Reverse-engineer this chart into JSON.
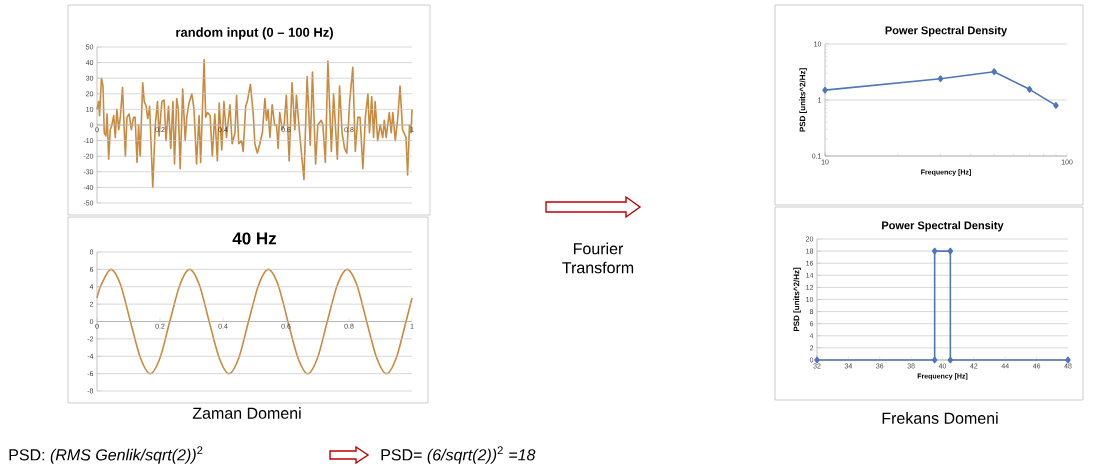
{
  "chart_data": [
    {
      "type": "line",
      "title": "random input (0 – 100 Hz)",
      "color": "#c98a3e",
      "xlim": [
        0,
        1
      ],
      "ylim": [
        -50,
        50
      ],
      "xticks": [
        0,
        0.2,
        0.4,
        0.6,
        0.8,
        1
      ],
      "yticks": [
        -50,
        -40,
        -30,
        -20,
        -10,
        0,
        10,
        20,
        30,
        40,
        50
      ],
      "grid": "y",
      "x": [
        0,
        0.005,
        0.008,
        0.014,
        0.019,
        0.023,
        0.028,
        0.032,
        0.037,
        0.042,
        0.047,
        0.053,
        0.058,
        0.063,
        0.069,
        0.074,
        0.081,
        0.09,
        0.095,
        0.102,
        0.109,
        0.116,
        0.121,
        0.127,
        0.132,
        0.137,
        0.145,
        0.15,
        0.156,
        0.161,
        0.167,
        0.177,
        0.185,
        0.192,
        0.197,
        0.206,
        0.213,
        0.219,
        0.227,
        0.234,
        0.241,
        0.246,
        0.253,
        0.258,
        0.264,
        0.272,
        0.28,
        0.285,
        0.292,
        0.301,
        0.308,
        0.316,
        0.324,
        0.329,
        0.34,
        0.345,
        0.351,
        0.359,
        0.366,
        0.374,
        0.382,
        0.388,
        0.396,
        0.403,
        0.411,
        0.422,
        0.429,
        0.438,
        0.443,
        0.45,
        0.459,
        0.464,
        0.472,
        0.477,
        0.487,
        0.496,
        0.501,
        0.509,
        0.517,
        0.525,
        0.533,
        0.538,
        0.543,
        0.549,
        0.556,
        0.564,
        0.57,
        0.575,
        0.58,
        0.588,
        0.594,
        0.601,
        0.61,
        0.619,
        0.628,
        0.633,
        0.643,
        0.657,
        0.667,
        0.677,
        0.684,
        0.694,
        0.701,
        0.712,
        0.717,
        0.725,
        0.733,
        0.744,
        0.751,
        0.763,
        0.77,
        0.778,
        0.786,
        0.793,
        0.802,
        0.812,
        0.82,
        0.828,
        0.835,
        0.844,
        0.852,
        0.86,
        0.865,
        0.872,
        0.878,
        0.883,
        0.891,
        0.899,
        0.907,
        0.912,
        0.918,
        0.928,
        0.934,
        0.939,
        0.947,
        0.955,
        0.962,
        0.97,
        0.981,
        0.986,
        0.992,
        0.997,
        1.0
      ],
      "values": [
        10,
        15,
        6,
        30,
        25,
        -5,
        -7,
        7,
        -22,
        -3,
        0,
        6,
        -8,
        10,
        -3,
        5,
        24,
        -20,
        5,
        7,
        -3,
        5,
        5,
        -24,
        0,
        -20,
        27,
        15,
        12,
        4,
        12,
        -40,
        0,
        15,
        -7,
        15,
        16,
        -10,
        12,
        -15,
        15,
        -25,
        17,
        10,
        -28,
        23,
        -10,
        5,
        14,
        20,
        10,
        -25,
        6,
        -24,
        42,
        5,
        8,
        6,
        -20,
        7,
        -23,
        14,
        -16,
        15,
        -8,
        13,
        -12,
        -5,
        19,
        -12,
        -10,
        -17,
        12,
        15,
        26,
        7,
        -12,
        -18,
        -12,
        -5,
        17,
        3,
        10,
        -8,
        13,
        0,
        0,
        -15,
        8,
        -3,
        0,
        19,
        -23,
        27,
        -3,
        19,
        -5,
        -35,
        31,
        -13,
        34,
        -25,
        0,
        3,
        0,
        -24,
        41,
        -17,
        20,
        -22,
        25,
        -5,
        -15,
        -18,
        15,
        37,
        -17,
        5,
        5,
        -28,
        5,
        20,
        -5,
        18,
        -8,
        15,
        -10,
        0,
        -8,
        3,
        -8,
        8,
        -5,
        8,
        -10,
        5,
        25,
        -3,
        -8,
        -32,
        0,
        -5,
        10
      ]
    },
    {
      "type": "line",
      "title": "40 Hz",
      "color": "#c98a3e",
      "xlim": [
        0,
        1
      ],
      "ylim": [
        -8,
        8
      ],
      "xticks": [
        0,
        0.2,
        0.4,
        0.6,
        0.8,
        1
      ],
      "yticks": [
        -8,
        -6,
        -4,
        -2,
        0,
        2,
        4,
        6,
        8
      ],
      "grid": "y",
      "x": [
        0,
        0.013,
        0.044,
        0.075,
        0.106,
        0.138,
        0.169,
        0.2,
        0.231,
        0.263,
        0.294,
        0.325,
        0.356,
        0.388,
        0.419,
        0.45,
        0.481,
        0.513,
        0.544,
        0.575,
        0.606,
        0.638,
        0.669,
        0.7,
        0.731,
        0.763,
        0.794,
        0.825,
        0.856,
        0.888,
        0.919,
        0.95,
        0.981,
        1.0
      ],
      "values": [
        2.7,
        4.2,
        6,
        4.2,
        0,
        -4.2,
        -6,
        -4.2,
        0,
        4.2,
        6,
        4.2,
        0,
        -4.2,
        -6,
        -4.2,
        0,
        4.2,
        6,
        4.2,
        0,
        -4.2,
        -6,
        -4.2,
        0,
        4.2,
        6,
        4.2,
        0,
        -4.2,
        -6,
        -4.2,
        0,
        2.7
      ],
      "annotations": [
        "Zaman Domeni",
        "PSD: *(RMS Genlik/sqrt(2))*$^{2}$",
        "PSD= *(6/sqrt(2))*$^{2}$ *=18*"
      ]
    },
    {
      "type": "line",
      "title": "Power Spectral Density",
      "xlabel": "Frequency [Hz]",
      "ylabel": "PSD [units^2/Hz]",
      "color": "#4f75bd",
      "marker": "diamond",
      "log": "xy",
      "xlim": [
        10,
        100
      ],
      "ylim": [
        0.1,
        10
      ],
      "xticks": [
        10,
        100
      ],
      "yticks": [
        0.1,
        1,
        10
      ],
      "grid": "y",
      "x": [
        10,
        30,
        50,
        70,
        90
      ],
      "values": [
        1.5,
        2.4,
        3.2,
        1.55,
        0.8
      ],
      "annotations": [
        "Fourier Transform"
      ]
    },
    {
      "type": "line",
      "title": "Power Spectral Density",
      "xlabel": "Frequency [Hz]",
      "ylabel": "PSD [units^2/Hz]",
      "color": "#4f75bd",
      "marker": "diamond",
      "xlim": [
        32,
        48
      ],
      "ylim": [
        0,
        20
      ],
      "xticks": [
        32,
        34,
        36,
        38,
        40,
        42,
        44,
        46,
        48
      ],
      "yticks": [
        0,
        2,
        4,
        6,
        8,
        10,
        12,
        14,
        16,
        18,
        20
      ],
      "grid": "y",
      "x": [
        32,
        39.5,
        39.5,
        40.5,
        40.5,
        48
      ],
      "values": [
        0,
        0,
        18,
        18,
        0,
        0
      ],
      "annotations": [
        "Frekans Domeni"
      ]
    }
  ]
}
